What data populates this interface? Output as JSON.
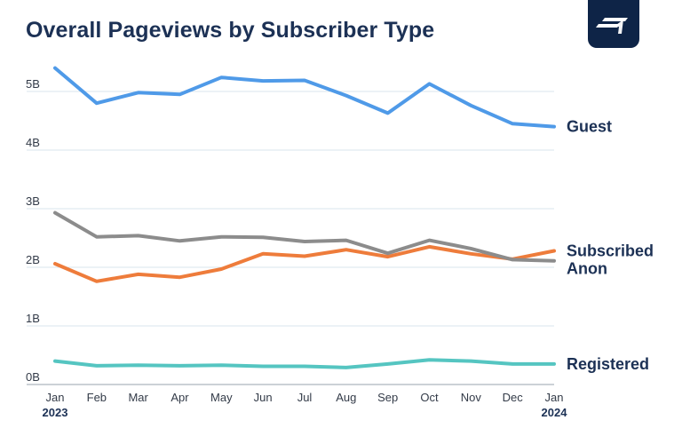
{
  "chart_data": {
    "type": "line",
    "title": "Overall Pageviews by Subscriber Type",
    "x": [
      "Jan",
      "Feb",
      "Mar",
      "Apr",
      "May",
      "Jun",
      "Jul",
      "Aug",
      "Sep",
      "Oct",
      "Nov",
      "Dec",
      "Jan"
    ],
    "x_sublabels": [
      "2023",
      "",
      "",
      "",
      "",
      "",
      "",
      "",
      "",
      "",
      "",
      "",
      "2024"
    ],
    "y_ticks": [
      "0B",
      "1B",
      "2B",
      "3B",
      "4B",
      "5B"
    ],
    "ylim": [
      0,
      5.5
    ],
    "grid": true,
    "legend": "labels at line ends (right)",
    "series": [
      {
        "name": "Guest",
        "color": "#4f9ae8",
        "values": [
          5.4,
          4.8,
          4.98,
          4.95,
          5.24,
          5.18,
          5.19,
          4.93,
          4.63,
          5.13,
          4.76,
          4.45,
          4.4
        ]
      },
      {
        "name": "Subscribed",
        "color": "#ee7c3b",
        "values": [
          2.06,
          1.76,
          1.88,
          1.83,
          1.97,
          2.23,
          2.19,
          2.3,
          2.18,
          2.35,
          2.23,
          2.14,
          2.28
        ]
      },
      {
        "name": "Anon",
        "color": "#8c8c8c",
        "values": [
          2.93,
          2.52,
          2.54,
          2.45,
          2.52,
          2.51,
          2.44,
          2.46,
          2.24,
          2.46,
          2.32,
          2.13,
          2.11
        ]
      },
      {
        "name": "Registered",
        "color": "#55c5c1",
        "values": [
          0.4,
          0.32,
          0.33,
          0.32,
          0.33,
          0.31,
          0.31,
          0.29,
          0.35,
          0.42,
          0.4,
          0.35,
          0.35
        ]
      }
    ]
  },
  "logo": {
    "icon": "brand-logo-icon"
  }
}
